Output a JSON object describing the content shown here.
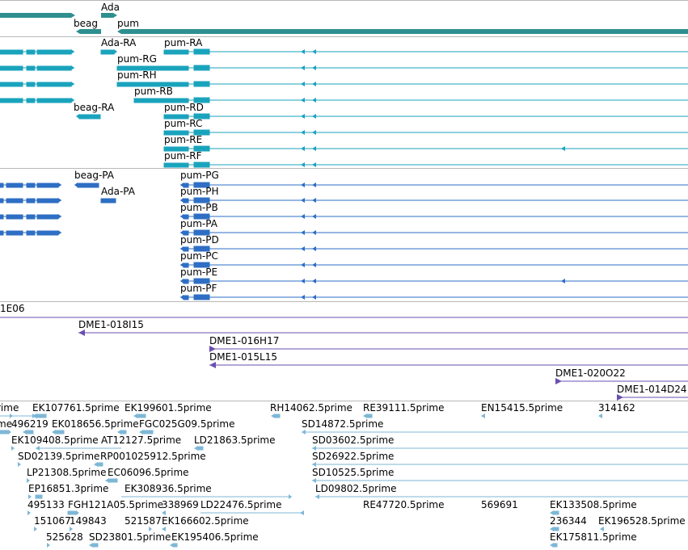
{
  "colors": {
    "gene": "#2f8f8f",
    "transcript_teal": "#1aa3bd",
    "transcript_blue": "#2e6ec4",
    "clone": "#6a4fb0",
    "est": "#7eb7d6",
    "separator": "#b8b8b8"
  },
  "gene_track": {
    "labels": [
      "Ada",
      "beag",
      "pum"
    ]
  },
  "transcript_track_a": {
    "labels": [
      "Ada-RA",
      "pum-RA",
      "pum-RG",
      "pum-RH",
      "pum-RB",
      "beag-RA",
      "pum-RD",
      "pum-RC",
      "pum-RE",
      "pum-RF"
    ]
  },
  "transcript_track_b": {
    "labels": [
      "beag-PA",
      "pum-PG",
      "Ada-PA",
      "pum-PH",
      "pum-PB",
      "pum-PA",
      "pum-PD",
      "pum-PC",
      "pum-PE",
      "pum-PF"
    ]
  },
  "clone_track": {
    "labels": [
      "1E06",
      "DME1-018I15",
      "DME1-016H17",
      "DME1-015L15",
      "DME1-020O22",
      "DME1-014D24"
    ]
  },
  "est_track": {
    "labels": [
      "rime",
      "EK107761.5prime",
      "EK199601.5prime",
      "RH14062.5prime",
      "RE39111.5prime",
      "EN15415.5prime",
      "314162",
      "me",
      "496219",
      "EK018656.5prime",
      "FGC025G09.5prime",
      "SD14872.5prime",
      "EK109408.5prime",
      "AT12127.5prime",
      "LD21863.5prime",
      "SD03602.5prime",
      "SD02139.5prime",
      "RP001025912.5prime",
      "SD26922.5prime",
      "LP21308.5prime",
      "EC06096.5prime",
      "SD10525.5prime",
      "EP16851.3prime",
      "EK308936.5prime",
      "LD09802.5prime",
      "495133",
      "FGH121A05.5prime",
      "338969",
      "LD22476.5prime",
      "RE47720.5prime",
      "569691",
      "EK133508.5prime",
      "151067",
      "149843",
      "521587",
      "EK166602.5prime",
      "236344",
      "EK196528.5prime",
      "525628",
      "SD23801.5prime",
      "EK195406.5prime",
      "EK175811.5prime"
    ]
  }
}
